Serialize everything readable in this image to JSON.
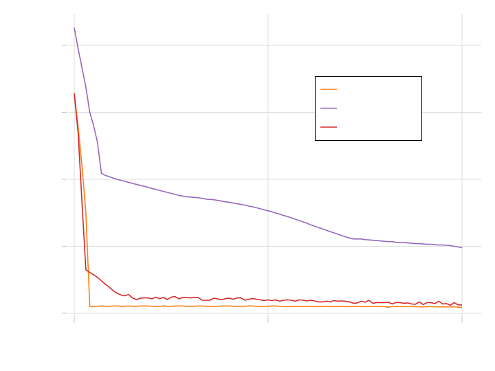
{
  "chart_data": {
    "type": "line",
    "title": "",
    "xlabel": "",
    "ylabel": "",
    "xlim": [
      0,
      100
    ],
    "ylim": [
      0,
      1
    ],
    "x_ticks": [
      0,
      50,
      100
    ],
    "y_ticks": [
      0.0,
      0.2,
      0.4,
      0.6,
      0.8
    ],
    "grid": true,
    "legend_position": "upper-right",
    "colors": [
      "#ff7f0e",
      "#9467bd",
      "#d62728"
    ],
    "x": [
      0,
      1,
      2,
      3,
      4,
      5,
      6,
      7,
      8,
      9,
      10,
      11,
      12,
      13,
      14,
      15,
      16,
      17,
      18,
      19,
      20,
      21,
      22,
      23,
      24,
      25,
      26,
      27,
      28,
      29,
      30,
      31,
      32,
      33,
      34,
      35,
      36,
      37,
      38,
      39,
      40,
      41,
      42,
      43,
      44,
      45,
      46,
      47,
      48,
      49,
      50,
      51,
      52,
      53,
      54,
      55,
      56,
      57,
      58,
      59,
      60,
      61,
      62,
      63,
      64,
      65,
      66,
      67,
      68,
      69,
      70,
      71,
      72,
      73,
      74,
      75,
      76,
      77,
      78,
      79,
      80,
      81,
      82,
      83,
      84,
      85,
      86,
      87,
      88,
      89,
      90,
      91,
      92,
      93,
      94,
      95,
      96,
      97,
      98,
      99,
      100
    ],
    "series": [
      {
        "name": "",
        "color": "#ff7f0e",
        "values": [
          0.658,
          0.556,
          0.44,
          0.3,
          0.02,
          0.021,
          0.021,
          0.022,
          0.021,
          0.021,
          0.022,
          0.022,
          0.021,
          0.021,
          0.022,
          0.021,
          0.021,
          0.022,
          0.022,
          0.022,
          0.021,
          0.021,
          0.021,
          0.022,
          0.021,
          0.021,
          0.022,
          0.022,
          0.022,
          0.021,
          0.021,
          0.021,
          0.022,
          0.022,
          0.021,
          0.021,
          0.021,
          0.021,
          0.022,
          0.022,
          0.022,
          0.021,
          0.021,
          0.021,
          0.021,
          0.022,
          0.022,
          0.021,
          0.021,
          0.021,
          0.021,
          0.022,
          0.022,
          0.021,
          0.02,
          0.02,
          0.02,
          0.021,
          0.021,
          0.02,
          0.021,
          0.021,
          0.02,
          0.02,
          0.02,
          0.021,
          0.02,
          0.02,
          0.02,
          0.021,
          0.02,
          0.02,
          0.02,
          0.021,
          0.02,
          0.02,
          0.02,
          0.021,
          0.021,
          0.02,
          0.02,
          0.018,
          0.02,
          0.021,
          0.02,
          0.02,
          0.02,
          0.02,
          0.02,
          0.019,
          0.019,
          0.02,
          0.02,
          0.02,
          0.019,
          0.019,
          0.019,
          0.019,
          0.019,
          0.018,
          0.017
        ]
      },
      {
        "name": "",
        "color": "#9467bd",
        "values": [
          0.853,
          0.79,
          0.733,
          0.675,
          0.6,
          0.56,
          0.51,
          0.418,
          0.412,
          0.408,
          0.404,
          0.4,
          0.397,
          0.394,
          0.391,
          0.388,
          0.385,
          0.382,
          0.379,
          0.376,
          0.373,
          0.37,
          0.367,
          0.364,
          0.361,
          0.358,
          0.355,
          0.352,
          0.35,
          0.348,
          0.347,
          0.346,
          0.345,
          0.343,
          0.341,
          0.34,
          0.339,
          0.337,
          0.335,
          0.333,
          0.331,
          0.329,
          0.327,
          0.325,
          0.323,
          0.32,
          0.318,
          0.315,
          0.312,
          0.309,
          0.306,
          0.303,
          0.299,
          0.296,
          0.292,
          0.289,
          0.285,
          0.281,
          0.277,
          0.273,
          0.269,
          0.264,
          0.26,
          0.256,
          0.252,
          0.248,
          0.244,
          0.24,
          0.236,
          0.232,
          0.228,
          0.225,
          0.222,
          0.222,
          0.222,
          0.22,
          0.219,
          0.218,
          0.217,
          0.216,
          0.215,
          0.214,
          0.214,
          0.212,
          0.211,
          0.211,
          0.21,
          0.209,
          0.208,
          0.208,
          0.207,
          0.206,
          0.206,
          0.205,
          0.204,
          0.204,
          0.203,
          0.202,
          0.2,
          0.198,
          0.196
        ]
      },
      {
        "name": "",
        "color": "#d62728",
        "values": [
          0.655,
          0.54,
          0.329,
          0.13,
          0.122,
          0.115,
          0.107,
          0.097,
          0.087,
          0.078,
          0.068,
          0.06,
          0.055,
          0.052,
          0.056,
          0.046,
          0.041,
          0.045,
          0.046,
          0.046,
          0.043,
          0.048,
          0.044,
          0.047,
          0.041,
          0.048,
          0.05,
          0.043,
          0.047,
          0.047,
          0.046,
          0.047,
          0.047,
          0.039,
          0.039,
          0.039,
          0.045,
          0.043,
          0.04,
          0.044,
          0.045,
          0.042,
          0.046,
          0.046,
          0.039,
          0.042,
          0.044,
          0.042,
          0.04,
          0.038,
          0.04,
          0.038,
          0.04,
          0.036,
          0.039,
          0.04,
          0.039,
          0.036,
          0.04,
          0.039,
          0.037,
          0.039,
          0.037,
          0.034,
          0.034,
          0.036,
          0.034,
          0.038,
          0.036,
          0.037,
          0.036,
          0.034,
          0.03,
          0.031,
          0.036,
          0.033,
          0.039,
          0.03,
          0.032,
          0.032,
          0.032,
          0.033,
          0.028,
          0.032,
          0.032,
          0.03,
          0.031,
          0.028,
          0.027,
          0.034,
          0.026,
          0.032,
          0.032,
          0.029,
          0.036,
          0.028,
          0.029,
          0.024,
          0.032,
          0.025,
          0.025
        ]
      }
    ]
  }
}
